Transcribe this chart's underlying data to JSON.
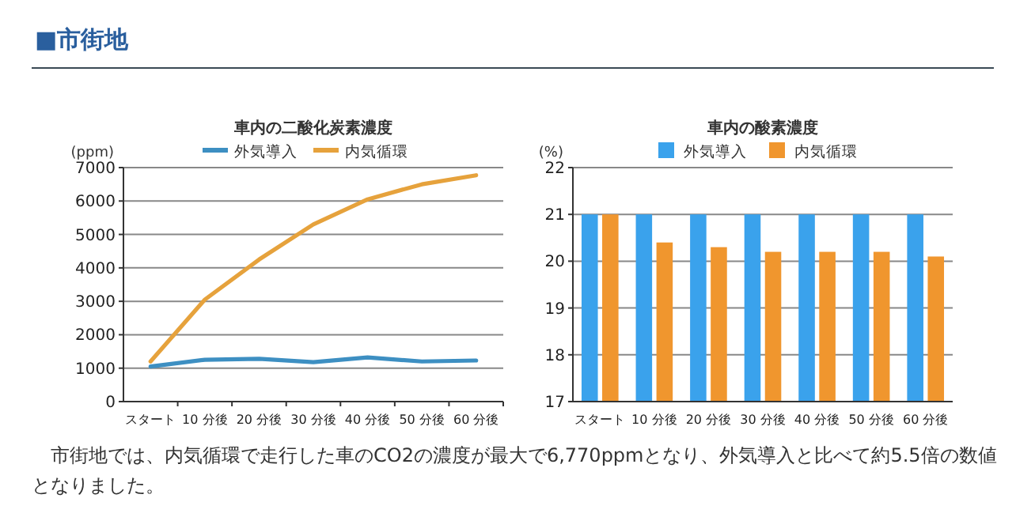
{
  "chart_data": [
    {
      "type": "line",
      "title": "車内の二酸化炭素濃度",
      "ylabel": "(ppm)",
      "annotations": [
        "■市街地",
        "市街地では、内気循環で走行した車のCO2の濃度が最大で6,770ppmとなり、外気導入と比べて約5.5倍の数値となりました。"
      ],
      "categories": [
        "スタート",
        "10 分後",
        "20 分後",
        "30 分後",
        "40 分後",
        "50 分後",
        "60 分後"
      ],
      "series": [
        {
          "name": "外気導入",
          "color": "#3d8fc2",
          "values": [
            1050,
            1250,
            1280,
            1180,
            1320,
            1200,
            1230
          ]
        },
        {
          "name": "内気循環",
          "color": "#e6a23c",
          "values": [
            1200,
            3050,
            4250,
            5300,
            6050,
            6500,
            6770
          ]
        }
      ],
      "ylim": [
        0,
        7000
      ],
      "yticks": [
        0,
        1000,
        2000,
        3000,
        4000,
        5000,
        6000,
        7000
      ],
      "grid": "y",
      "legend": "top",
      "marker": "none"
    },
    {
      "type": "bar",
      "title": "車内の酸素濃度",
      "ylabel": "(%)",
      "categories": [
        "スタート",
        "10 分後",
        "20 分後",
        "30 分後",
        "40 分後",
        "50 分後",
        "60 分後"
      ],
      "series": [
        {
          "name": "外気導入",
          "color": "#3aa2ec",
          "values": [
            21,
            21,
            21,
            21,
            21,
            21,
            21
          ]
        },
        {
          "name": "内気循環",
          "color": "#f0962e",
          "values": [
            21,
            20.4,
            20.3,
            20.2,
            20.2,
            20.2,
            20.1
          ]
        }
      ],
      "ylim": [
        17,
        22
      ],
      "yticks": [
        17,
        18,
        19,
        20,
        21,
        22
      ],
      "grid": "y",
      "legend": "top"
    }
  ]
}
